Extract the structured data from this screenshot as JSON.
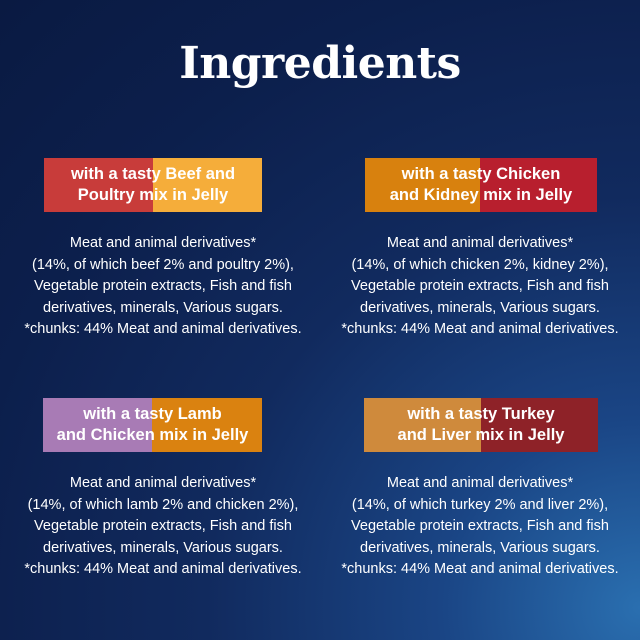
{
  "title": "Ingredients",
  "products": [
    {
      "label_line1": "with a tasty Beef and",
      "label_line2": "Poultry mix in Jelly",
      "colors": [
        "#c83c3a",
        "#f5ad3a"
      ],
      "lines": [
        "Meat and animal derivatives*",
        "(14%, of which beef 2% and poultry 2%),",
        "Vegetable protein extracts, Fish and fish",
        "derivatives, minerals, Various sugars.",
        "*chunks: 44% Meat and animal derivatives."
      ]
    },
    {
      "label_line1": "with a tasty Chicken",
      "label_line2": "and Kidney mix in Jelly",
      "colors": [
        "#d8810e",
        "#b81f2e"
      ],
      "lines": [
        "Meat and animal derivatives*",
        "(14%, of which chicken 2%, kidney 2%),",
        "Vegetable protein extracts, Fish and fish",
        "derivatives, minerals, Various sugars.",
        "*chunks: 44% Meat and animal derivatives."
      ]
    },
    {
      "label_line1": "with a tasty Lamb",
      "label_line2": "and Chicken mix in Jelly",
      "colors": [
        "#a87bb5",
        "#da8210"
      ],
      "lines": [
        "Meat and animal derivatives*",
        "(14%, of which lamb 2% and chicken 2%),",
        "Vegetable protein extracts, Fish and fish",
        "derivatives, minerals, Various sugars.",
        "*chunks: 44% Meat and animal derivatives."
      ]
    },
    {
      "label_line1": "with a tasty Turkey",
      "label_line2": "and Liver mix in Jelly",
      "colors": [
        "#cf8a3c",
        "#8e2228"
      ],
      "lines": [
        "Meat and animal derivatives*",
        "(14%, of which turkey 2% and liver 2%),",
        "Vegetable protein extracts, Fish and fish",
        "derivatives, minerals, Various sugars.",
        "*chunks: 44% Meat and animal derivatives."
      ]
    }
  ]
}
